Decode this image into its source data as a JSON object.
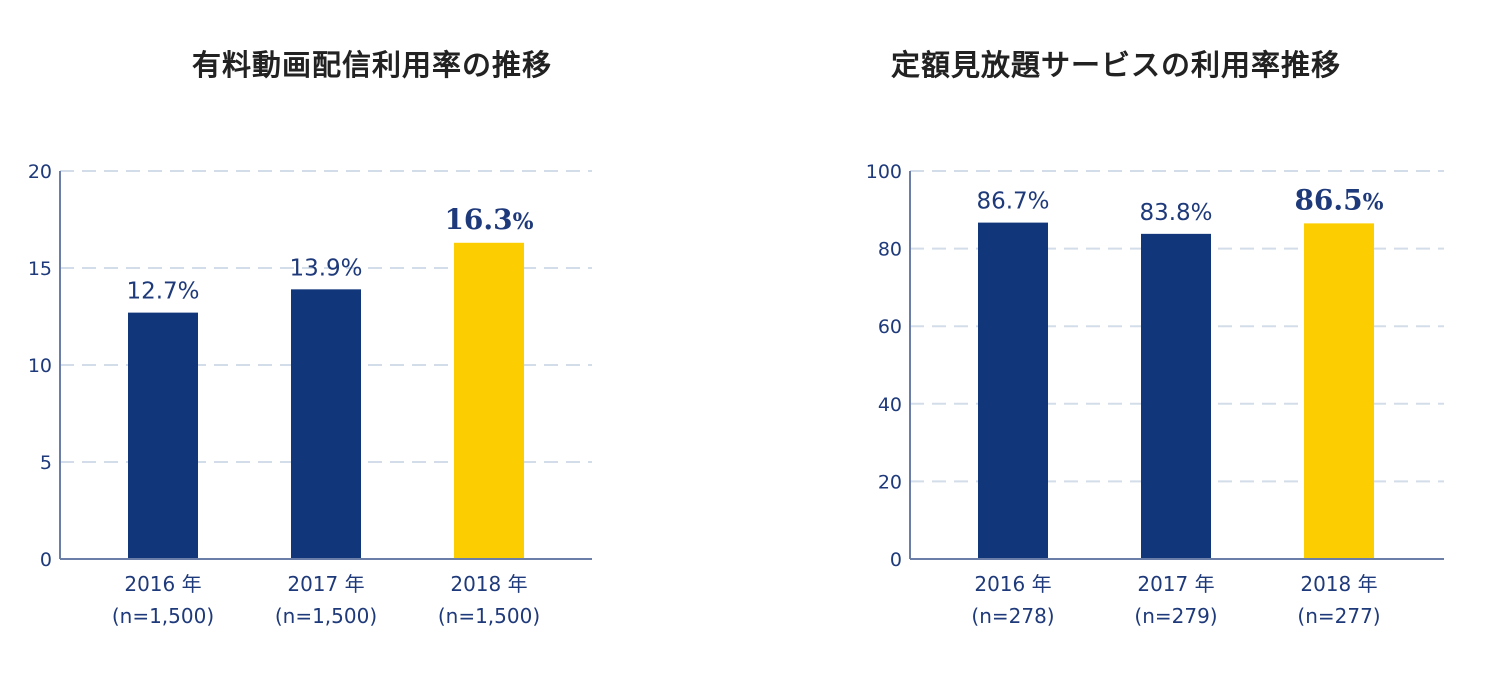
{
  "colors": {
    "primary_bar": "#11367a",
    "highlight_bar": "#fccd00",
    "axis": "#6a7ea8",
    "grid": "#d3dde9",
    "text": "#1f3a7a",
    "title": "#222222"
  },
  "chart_data": [
    {
      "type": "bar",
      "title": "有料動画配信利用率の推移",
      "categories": [
        "2016 年",
        "2017 年",
        "2018 年"
      ],
      "category_notes": [
        "(n=1,500)",
        "(n=1,500)",
        "(n=1,500)"
      ],
      "values": [
        12.7,
        13.9,
        16.3
      ],
      "value_labels": [
        "12.7%",
        "13.9%",
        "16.3%"
      ],
      "highlight_index": 2,
      "ylim": [
        0,
        20
      ],
      "yticks": [
        0,
        5,
        10,
        15,
        20
      ],
      "grid": true,
      "xlabel": "",
      "ylabel": ""
    },
    {
      "type": "bar",
      "title": "定額見放題サービスの利用率推移",
      "categories": [
        "2016 年",
        "2017 年",
        "2018 年"
      ],
      "category_notes": [
        "(n=278)",
        "(n=279)",
        "(n=277)"
      ],
      "values": [
        86.7,
        83.8,
        86.5
      ],
      "value_labels": [
        "86.7%",
        "83.8%",
        "86.5%"
      ],
      "highlight_index": 2,
      "ylim": [
        0,
        100
      ],
      "yticks": [
        0,
        20,
        40,
        60,
        80,
        100
      ],
      "grid": true,
      "xlabel": "",
      "ylabel": ""
    }
  ]
}
